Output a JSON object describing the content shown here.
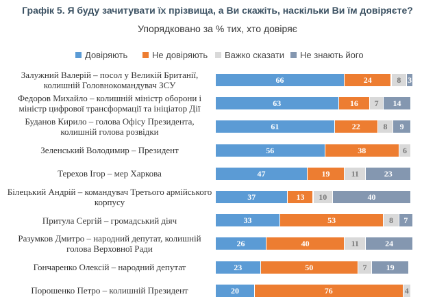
{
  "chart_data": {
    "type": "bar",
    "orientation": "horizontal",
    "stacked": true,
    "title": "Графік 5. Я буду зачитувати їх прізвища, а Ви скажіть, наскільки Ви їм довіряєте?",
    "subtitle": "Упорядковано за % тих, хто довіряє",
    "legend_position": "top",
    "grid": false,
    "xlim": [
      0,
      100
    ],
    "categories": [
      "Залужний Валерій – посол у Великій Британії, колишній Головнокомандувач ЗСУ",
      "Федоров Михайло – колишній міністр оборони і міністр цифрової трансформації та ініціатор Дії",
      "Буданов Кирило – голова Офісу Президента, колишній голова розвідки",
      "Зеленський Володимир – Президент",
      "Терехов Ігор – мер Харкова",
      "Білецький Андрій – командувач Третього армійського корпусу",
      "Притула Сергій – громадський діяч",
      "Разумков Дмитро – народний депутат, колишній голова Верховної Ради",
      "Гончаренко Олексій – народний депутат",
      "Порошенко Петро – колишній Президент"
    ],
    "series": [
      {
        "name": "Довіряють",
        "color": "#5b9bd5",
        "values": [
          66,
          63,
          61,
          56,
          47,
          37,
          33,
          26,
          23,
          20
        ]
      },
      {
        "name": "Не довіряють",
        "color": "#ed7d31",
        "values": [
          24,
          16,
          22,
          38,
          19,
          13,
          53,
          40,
          50,
          76
        ]
      },
      {
        "name": "Важко сказати",
        "color": "#d9d9d9",
        "values": [
          8,
          7,
          8,
          6,
          11,
          10,
          8,
          11,
          7,
          4
        ]
      },
      {
        "name": "Не знають його",
        "color": "#8497b0",
        "values": [
          3,
          14,
          9,
          0,
          23,
          40,
          7,
          24,
          19,
          0
        ]
      }
    ]
  }
}
